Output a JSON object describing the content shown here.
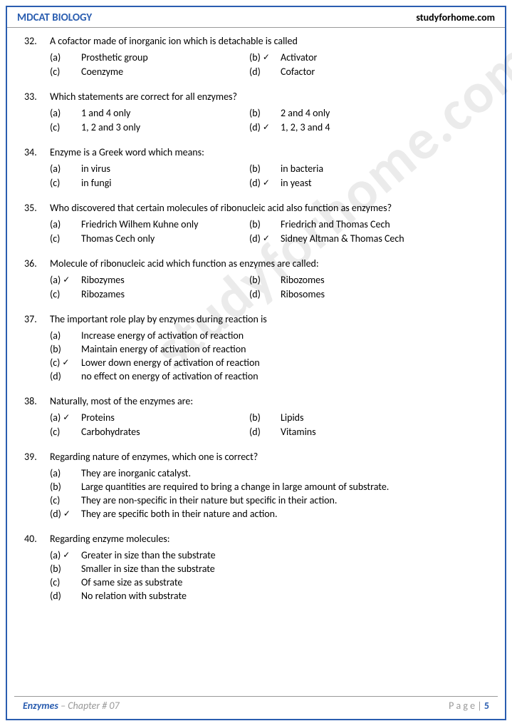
{
  "header": {
    "left": "MDCAT BIOLOGY",
    "right": "studyforhome.com"
  },
  "watermark": "studyforhome.com",
  "footer": {
    "subject": "Enzymes",
    "chapter": " – Chapter # 07",
    "page_label": "P a g e  | ",
    "page_num": "5"
  },
  "questions": [
    {
      "num": "32.",
      "text": "A cofactor made of inorganic ion which is detachable is called",
      "layout": "two",
      "options": [
        {
          "label": "(a)",
          "text": "Prosthetic group",
          "correct": false
        },
        {
          "label": "(b)",
          "text": "Activator",
          "correct": true
        },
        {
          "label": "(c)",
          "text": "Coenzyme",
          "correct": false
        },
        {
          "label": "(d)",
          "text": "Cofactor",
          "correct": false
        }
      ]
    },
    {
      "num": "33.",
      "text": "Which statements are correct for all enzymes?",
      "layout": "two",
      "options": [
        {
          "label": "(a)",
          "text": "1 and 4 only",
          "correct": false
        },
        {
          "label": "(b)",
          "text": "2 and 4 only",
          "correct": false
        },
        {
          "label": "(c)",
          "text": "1, 2 and 3 only",
          "correct": false
        },
        {
          "label": "(d)",
          "text": "1, 2, 3 and 4",
          "correct": true
        }
      ]
    },
    {
      "num": "34.",
      "text": "Enzyme is a Greek word which means:",
      "layout": "two",
      "options": [
        {
          "label": "(a)",
          "text": "in virus",
          "correct": false
        },
        {
          "label": "(b)",
          "text": "in bacteria",
          "correct": false
        },
        {
          "label": "(c)",
          "text": "in fungi",
          "correct": false
        },
        {
          "label": "(d)",
          "text": "in yeast",
          "correct": true
        }
      ]
    },
    {
      "num": "35.",
      "text": "Who discovered that certain molecules of ribonucleic acid also function as enzymes?",
      "layout": "two",
      "options": [
        {
          "label": "(a)",
          "text": "Friedrich Wilhem Kuhne only",
          "correct": false
        },
        {
          "label": "(b)",
          "text": "Friedrich and Thomas Cech",
          "correct": false
        },
        {
          "label": "(c)",
          "text": "Thomas Cech only",
          "correct": false
        },
        {
          "label": "(d)",
          "text": "Sidney Altman & Thomas Cech",
          "correct": true
        }
      ]
    },
    {
      "num": "36.",
      "text": "Molecule of ribonucleic acid which function as enzymes are called:",
      "layout": "two",
      "options": [
        {
          "label": "(a)",
          "text": "Ribozymes",
          "correct": true
        },
        {
          "label": "(b)",
          "text": "Ribozomes",
          "correct": false
        },
        {
          "label": "(c)",
          "text": "Ribozames",
          "correct": false
        },
        {
          "label": "(d)",
          "text": "Ribosomes",
          "correct": false
        }
      ]
    },
    {
      "num": "37.",
      "text": "The important role play by enzymes during reaction is",
      "layout": "single",
      "options": [
        {
          "label": "(a)",
          "text": "Increase energy of activation of reaction",
          "correct": false
        },
        {
          "label": "(b)",
          "text": "Maintain energy of activation of reaction",
          "correct": false
        },
        {
          "label": "(c)",
          "text": "Lower down energy of activation of reaction",
          "correct": true
        },
        {
          "label": "(d)",
          "text": "  no effect on energy of activation of reaction",
          "correct": false
        }
      ]
    },
    {
      "num": "38.",
      "text": "Naturally, most of the enzymes are:",
      "layout": "two",
      "options": [
        {
          "label": "(a)",
          "text": "Proteins",
          "correct": true
        },
        {
          "label": "(b)",
          "text": "Lipids",
          "correct": false
        },
        {
          "label": "(c)",
          "text": "Carbohydrates",
          "correct": false
        },
        {
          "label": "(d)",
          "text": "Vitamins",
          "correct": false
        }
      ]
    },
    {
      "num": "39.",
      "text": "Regarding nature of enzymes, which one is correct?",
      "layout": "single",
      "options": [
        {
          "label": "(a)",
          "text": "They are inorganic catalyst.",
          "correct": false
        },
        {
          "label": "(b)",
          "text": "Large quantities are required to bring a change in large amount of substrate.",
          "correct": false
        },
        {
          "label": "(c)",
          "text": "They are non-specific in their nature but specific in their action.",
          "correct": false
        },
        {
          "label": "(d)",
          "text": "They are specific both in their nature and action.",
          "correct": true
        }
      ]
    },
    {
      "num": "40.",
      "text": "Regarding enzyme molecules:",
      "layout": "single",
      "options": [
        {
          "label": "(a)",
          "text": "Greater in size than the substrate",
          "correct": true
        },
        {
          "label": "(b)",
          "text": "Smaller in size than the substrate",
          "correct": false
        },
        {
          "label": "(c)",
          "text": "Of same size as substrate",
          "correct": false
        },
        {
          "label": "(d)",
          "text": "No relation with substrate",
          "correct": false
        }
      ]
    }
  ]
}
